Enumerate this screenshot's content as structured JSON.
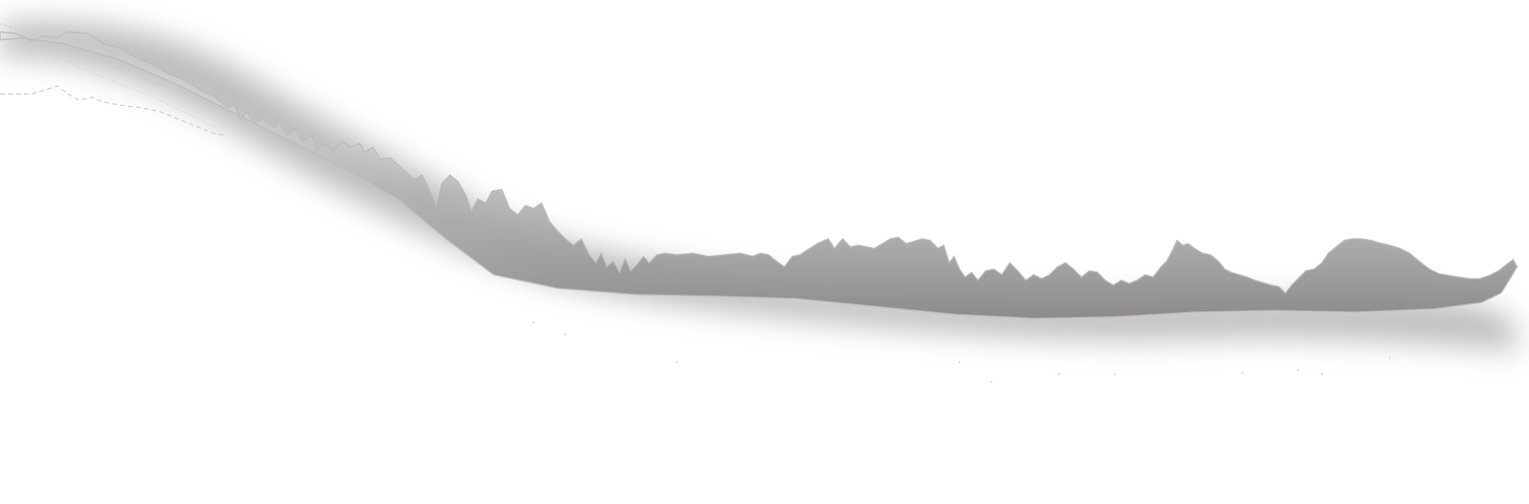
{
  "scene": {
    "background": "#ffffff",
    "shadow_color": "#8f8c8c",
    "edge_color": "#bdbbbb",
    "trace_color": "#c8c6c6",
    "description_icon": "terrain-silhouette-icon"
  }
}
